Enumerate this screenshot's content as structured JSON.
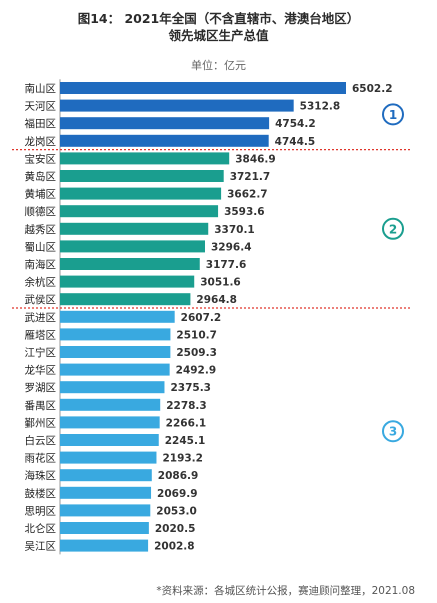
{
  "title_line1": "图14：  2021年全国（不含直辖市、港澳台地区）",
  "title_line2": "领先城区生产总值",
  "unit_label": "单位：亿元",
  "source_text": "*资料来源：各城区统计公报，赛迪顾问整理，2021.08",
  "colors": {
    "group1": "#1f6bbf",
    "group2": "#1a9e8f",
    "group3": "#39a9e0",
    "divider": "#e0352b",
    "circle1": "#1f6bbf",
    "circle2": "#1a9e8f",
    "circle3": "#39a9e0"
  },
  "chart_data": {
    "type": "bar",
    "orientation": "horizontal",
    "categories": [
      "南山区",
      "天河区",
      "福田区",
      "龙岗区",
      "宝安区",
      "黄岛区",
      "黄埔区",
      "顺德区",
      "越秀区",
      "蜀山区",
      "南海区",
      "余杭区",
      "武侯区",
      "武进区",
      "雁塔区",
      "江宁区",
      "龙华区",
      "罗湖区",
      "番禺区",
      "鄞州区",
      "白云区",
      "雨花区",
      "海珠区",
      "鼓楼区",
      "思明区",
      "北仑区",
      "吴江区"
    ],
    "values": [
      6502.2,
      5312.8,
      4754.2,
      4744.5,
      3846.9,
      3721.7,
      3662.7,
      3593.6,
      3370.1,
      3296.4,
      3177.6,
      3051.6,
      2964.8,
      2607.2,
      2510.7,
      2509.3,
      2492.9,
      2375.3,
      2278.3,
      2266.1,
      2245.1,
      2193.2,
      2086.9,
      2069.9,
      2053.0,
      2020.5,
      2002.8
    ],
    "value_labels": [
      "6502.2",
      "5312.8",
      "4754.2",
      "4744.5",
      "3846.9",
      "3721.7",
      "3662.7",
      "3593.6",
      "3370.1",
      "3296.4",
      "3177.6",
      "3051.6",
      "2964.8",
      "2607.2",
      "2510.7",
      "2509.3",
      "2492.9",
      "2375.3",
      "2278.3",
      "2266.1",
      "2245.1",
      "2193.2",
      "2086.9",
      "2069.9",
      "2053.0",
      "2020.5",
      "2002.8"
    ],
    "groups": [
      {
        "label": "1",
        "first": 0,
        "last": 3
      },
      {
        "label": "2",
        "first": 4,
        "last": 12
      },
      {
        "label": "3",
        "first": 13,
        "last": 26
      }
    ],
    "xlim": [
      0,
      6502.2
    ]
  }
}
